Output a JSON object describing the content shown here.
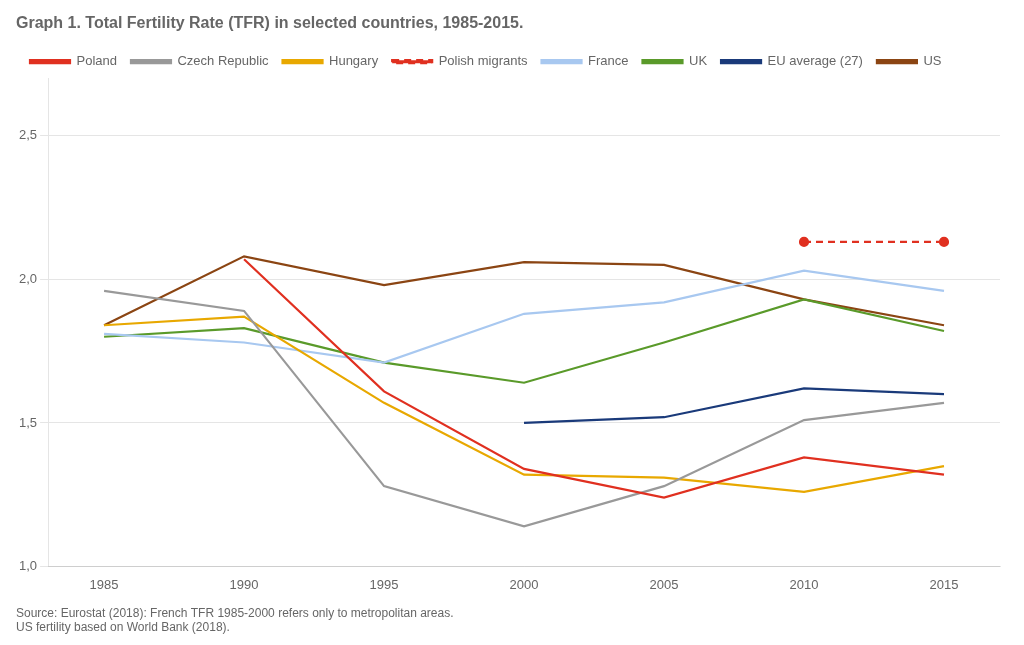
{
  "chart_data": {
    "type": "line",
    "title": "Graph 1. Total Fertility Rate (TFR) in selected countries, 1985-2015.",
    "annotations": [
      "Source: Eurostat (2018): French TFR 1985-2000 refers only to metropolitan areas.",
      "US fertility based on World Bank (2018)."
    ],
    "x": [
      1985,
      1990,
      1995,
      2000,
      2005,
      2010,
      2015
    ],
    "series": [
      {
        "name": "Poland",
        "color": "#e03020",
        "values": [
          null,
          2.07,
          1.61,
          1.34,
          1.24,
          1.38,
          1.32
        ]
      },
      {
        "name": "Czech Republic",
        "color": "#999999",
        "values": [
          1.96,
          1.89,
          1.28,
          1.14,
          1.28,
          1.51,
          1.57
        ]
      },
      {
        "name": "Hungary",
        "color": "#e8a800",
        "values": [
          1.84,
          1.87,
          1.57,
          1.32,
          1.31,
          1.26,
          1.35
        ]
      },
      {
        "name": "Polish migrants",
        "color": "#e03020",
        "line_style": "dashed",
        "marker": "circle",
        "values": [
          null,
          null,
          null,
          null,
          null,
          2.13,
          2.13
        ]
      },
      {
        "name": "France",
        "color": "#a8c8f0",
        "values": [
          1.81,
          1.78,
          1.71,
          1.88,
          1.92,
          2.03,
          1.96
        ]
      },
      {
        "name": "UK",
        "color": "#5a9a2a",
        "values": [
          1.8,
          1.83,
          1.71,
          1.64,
          1.78,
          1.93,
          1.82
        ]
      },
      {
        "name": "EU average (27)",
        "color": "#1a3a7a",
        "values": [
          null,
          null,
          null,
          1.5,
          1.52,
          1.62,
          1.6
        ]
      },
      {
        "name": "US",
        "color": "#8B4513",
        "values": [
          1.84,
          2.08,
          1.98,
          2.06,
          2.05,
          1.93,
          1.84
        ]
      }
    ],
    "xlim": [
      1983,
      2017
    ],
    "xticks": [
      1985,
      1990,
      1995,
      2000,
      2005,
      2010,
      2015
    ],
    "ylim": [
      1.0,
      2.7
    ],
    "yticks": [
      {
        "value": 1.0,
        "label": "1,0"
      },
      {
        "value": 1.5,
        "label": "1,5"
      },
      {
        "value": 2.0,
        "label": "2,0"
      },
      {
        "value": 2.5,
        "label": "2,5"
      }
    ],
    "grid": "y",
    "legend": "top"
  }
}
